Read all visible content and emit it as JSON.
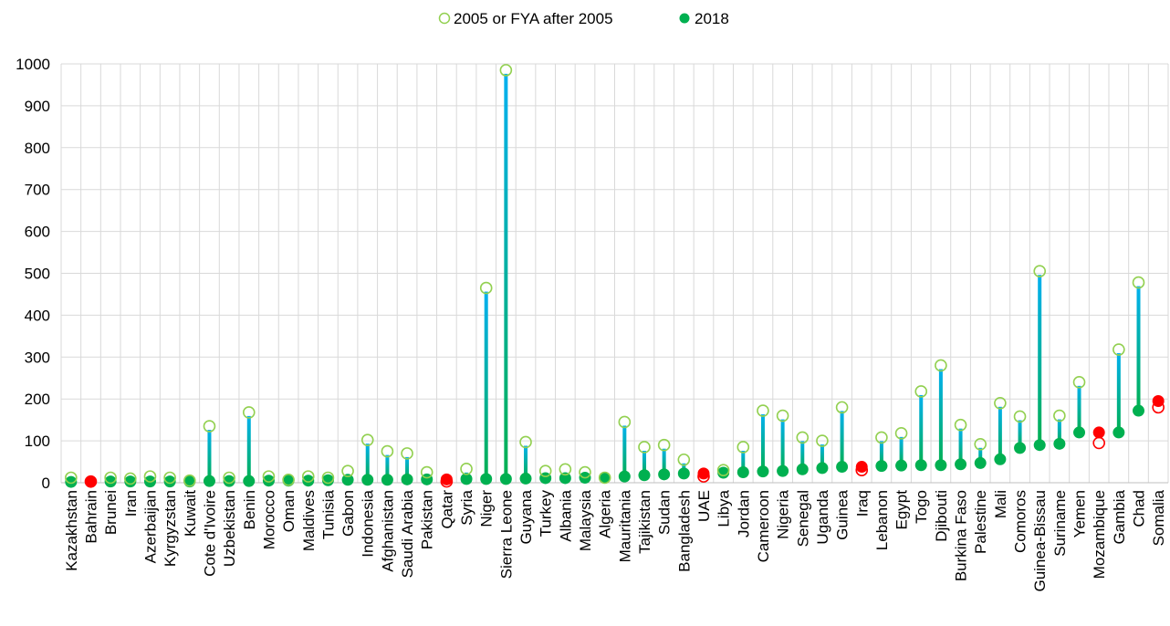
{
  "chart_data": {
    "type": "dumbbell",
    "title": "",
    "xlabel": "",
    "ylabel": "",
    "ylim": [
      0,
      1000
    ],
    "yticks": [
      0,
      100,
      200,
      300,
      400,
      500,
      600,
      700,
      800,
      900,
      1000
    ],
    "grid": true,
    "legend_position": "top-center",
    "series": [
      {
        "name": "2005 or FYA after 2005",
        "marker": "hollow-circle",
        "color": "#92d050"
      },
      {
        "name": "2018",
        "marker": "filled-circle",
        "color": "#00b050"
      }
    ],
    "highlight_color": "#ff0000",
    "colors": {
      "line_top": "#00b0f0",
      "line_bottom": "#00b050",
      "grid": "#d9d9d9"
    },
    "categories": [
      "Kazakhstan",
      "Bahrain",
      "Brunei",
      "Iran",
      "Azerbaijan",
      "Kyrgyzstan",
      "Kuwait",
      "Cote d'Ivoire",
      "Uzbekistan",
      "Benin",
      "Morocco",
      "Oman",
      "Maldives",
      "Tunisia",
      "Gabon",
      "Indonesia",
      "Afghanistan",
      "Saudi Arabia",
      "Pakistan",
      "Qatar",
      "Syria",
      "Niger",
      "Sierra Leone",
      "Guyana",
      "Turkey",
      "Albania",
      "Malaysia",
      "Algeria",
      "Mauritania",
      "Tajikistan",
      "Sudan",
      "Bangladesh",
      "UAE",
      "Libya",
      "Jordan",
      "Cameroon",
      "Nigeria",
      "Senegal",
      "Uganda",
      "Guinea",
      "Iraq",
      "Lebanon",
      "Egypt",
      "Togo",
      "Djibouti",
      "Burkina Faso",
      "Palestine",
      "Mali",
      "Comoros",
      "Guinea-Bissau",
      "Suriname",
      "Yemen",
      "Mozambique",
      "Gambia",
      "Chad",
      "Somalia"
    ],
    "values_2005": [
      12,
      3,
      12,
      10,
      15,
      12,
      5,
      135,
      12,
      168,
      15,
      7,
      15,
      12,
      28,
      102,
      75,
      70,
      25,
      3,
      33,
      465,
      985,
      97,
      28,
      32,
      25,
      12,
      145,
      85,
      90,
      55,
      15,
      30,
      85,
      172,
      160,
      108,
      100,
      180,
      30,
      108,
      118,
      218,
      280,
      138,
      92,
      190,
      158,
      505,
      160,
      240,
      95,
      318,
      478,
      180
    ],
    "values_2018": [
      2,
      2,
      3,
      3,
      3,
      3,
      3,
      4,
      4,
      4,
      5,
      5,
      5,
      6,
      7,
      7,
      7,
      8,
      8,
      8,
      9,
      9,
      9,
      10,
      11,
      11,
      12,
      12,
      15,
      18,
      20,
      22,
      22,
      24,
      25,
      27,
      28,
      32,
      35,
      38,
      38,
      40,
      41,
      42,
      42,
      44,
      47,
      56,
      83,
      90,
      93,
      120,
      120,
      120,
      172,
      195
    ],
    "red_highlight": [
      "Bahrain",
      "Qatar",
      "UAE",
      "Iraq",
      "Mozambique",
      "Somalia"
    ]
  }
}
